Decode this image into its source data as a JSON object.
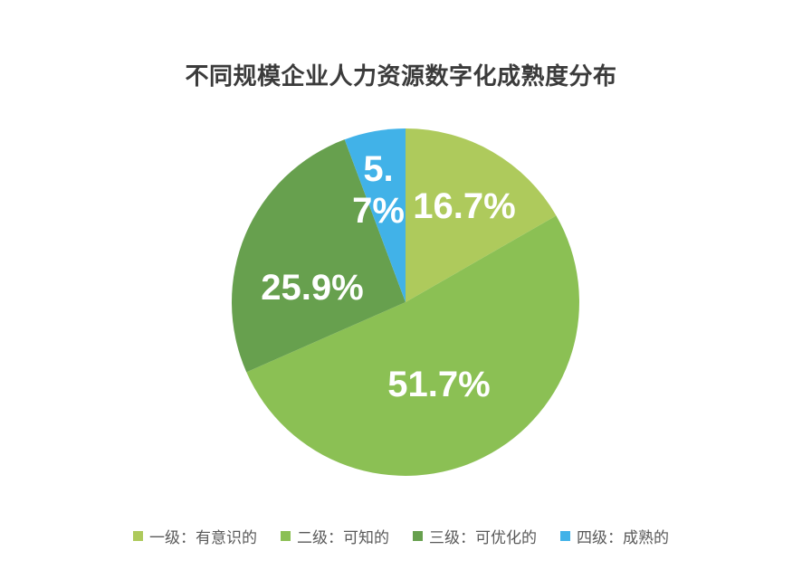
{
  "page": {
    "background_color": "#ffffff"
  },
  "chart_data": {
    "type": "pie",
    "title": "不同规模企业人力资源数字化成熟度分布",
    "categories": [
      "一级：有意识的",
      "二级：可知的",
      "三级：可优化的",
      "四级：成熟的"
    ],
    "values": [
      16.7,
      51.7,
      25.9,
      5.7
    ],
    "value_labels": [
      "16.7%",
      "51.7%",
      "25.9%",
      "5.7%"
    ],
    "colors": [
      "#aeca5c",
      "#8bc054",
      "#67a04e",
      "#41b2e8"
    ],
    "slice_label_color": "#ffffff",
    "title_color": "#3b3b3b",
    "legend_text_color": "#595959",
    "start_angle_deg": 0,
    "direction": "clockwise",
    "legend_position": "bottom",
    "unit": "%"
  }
}
